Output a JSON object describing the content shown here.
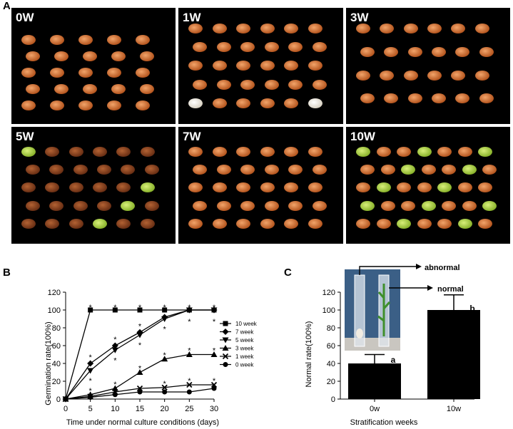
{
  "panel_labels": {
    "a": "A",
    "b": "B",
    "c": "C"
  },
  "photos": [
    {
      "label": "0W"
    },
    {
      "label": "1W"
    },
    {
      "label": "3W"
    },
    {
      "label": "5W"
    },
    {
      "label": "7W"
    },
    {
      "label": "10W"
    }
  ],
  "chart_data": [
    {
      "type": "line",
      "title": "",
      "xlabel": "Time under normal culture conditions (days)",
      "ylabel": "Germination rate(100%)",
      "x": [
        0,
        5,
        10,
        15,
        20,
        25,
        30
      ],
      "xlim": [
        0,
        30
      ],
      "ylim": [
        0,
        120
      ],
      "xticks": [
        "0",
        "5",
        "10",
        "15",
        "20",
        "25",
        "30"
      ],
      "yticks": [
        "0",
        "20",
        "40",
        "60",
        "80",
        "100",
        "120"
      ],
      "legend_position": "right",
      "series": [
        {
          "name": "10 week",
          "marker": "square",
          "values": [
            0,
            100,
            100,
            100,
            100,
            100,
            100
          ]
        },
        {
          "name": "7 week",
          "marker": "diamond",
          "values": [
            0,
            40,
            60,
            75,
            92,
            100,
            100
          ]
        },
        {
          "name": "5 week",
          "marker": "tri-down",
          "values": [
            0,
            32,
            55,
            72,
            90,
            100,
            100
          ]
        },
        {
          "name": "3 week",
          "marker": "triangle",
          "values": [
            0,
            5,
            12,
            30,
            45,
            50,
            50
          ]
        },
        {
          "name": "1 week",
          "marker": "x",
          "values": [
            0,
            3,
            8,
            12,
            13,
            16,
            16
          ]
        },
        {
          "name": "0 week",
          "marker": "circle",
          "values": [
            0,
            2,
            5,
            8,
            8,
            8,
            12
          ]
        }
      ],
      "annotation_text": "*"
    },
    {
      "type": "bar",
      "title": "",
      "xlabel": "Stratification weeks",
      "ylabel": "Normal rate(100%)",
      "categories": [
        "0w",
        "10w"
      ],
      "values": [
        40,
        100
      ],
      "errors": [
        10,
        17
      ],
      "ylim": [
        0,
        120
      ],
      "yticks": [
        "0",
        "20",
        "40",
        "60",
        "80",
        "100",
        "120"
      ],
      "bar_labels": [
        "a",
        "b"
      ],
      "inset_annotations": [
        "abnormal",
        "normal"
      ],
      "bar_color": "#000000"
    }
  ]
}
